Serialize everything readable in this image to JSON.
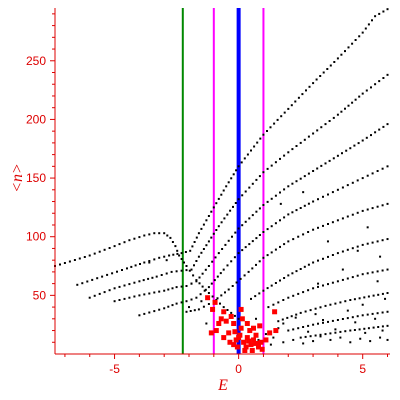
{
  "chart_data": {
    "type": "scatter",
    "title": "",
    "xlabel": "E",
    "ylabel": "<n>",
    "xlim": [
      -7.4,
      6.1
    ],
    "ylim": [
      0,
      295
    ],
    "xticks": [
      -5,
      0,
      5
    ],
    "yticks": [
      50,
      100,
      150,
      200,
      250
    ],
    "grid": false,
    "legend": "none",
    "colors": {
      "axes": "#dd0000",
      "main_points": "#000000",
      "highlight_points": "#ff0000",
      "left_line": "#008800",
      "band_lines": "#ff00ff",
      "center_line": "#0000ff"
    },
    "vertical_lines": [
      {
        "x": -2.25,
        "color": "#008800"
      },
      {
        "x": -1.0,
        "color": "#ff00ff"
      },
      {
        "x": 0.0,
        "color": "#0000ff"
      },
      {
        "x": 1.0,
        "color": "#ff00ff"
      }
    ],
    "series": [
      {
        "kind": "curve",
        "color": "#000000",
        "values": [
          [
            -7.4,
            75
          ],
          [
            -6.0,
            84
          ],
          [
            -5.0,
            92
          ],
          [
            -4.4,
            97
          ],
          [
            -3.8,
            101
          ],
          [
            -3.4,
            103
          ],
          [
            -3.0,
            103
          ],
          [
            -2.75,
            99
          ],
          [
            -2.55,
            92
          ],
          [
            -2.4,
            84
          ],
          [
            -2.1,
            75
          ],
          [
            -1.7,
            63
          ],
          [
            -1.2,
            52
          ],
          [
            -0.6,
            40
          ],
          [
            0.0,
            30
          ]
        ]
      },
      {
        "kind": "curve",
        "color": "#000000",
        "values": [
          [
            -6.5,
            59
          ],
          [
            -5.5,
            66
          ],
          [
            -4.5,
            73
          ],
          [
            -3.8,
            78
          ],
          [
            -3.2,
            82
          ],
          [
            -2.8,
            84
          ],
          [
            -2.3,
            86
          ],
          [
            -1.95,
            88
          ],
          [
            -1.6,
            103
          ],
          [
            -1.0,
            125
          ],
          [
            -0.5,
            143
          ],
          [
            0.0,
            160
          ],
          [
            1.0,
            187
          ],
          [
            2.0,
            209
          ],
          [
            3.0,
            231
          ],
          [
            4.0,
            252
          ],
          [
            5.0,
            274
          ],
          [
            5.5,
            288
          ],
          [
            6.0,
            294
          ]
        ]
      },
      {
        "kind": "curve",
        "color": "#000000",
        "values": [
          [
            -6.0,
            48
          ],
          [
            -5.0,
            56
          ],
          [
            -4.0,
            62
          ],
          [
            -3.3,
            66
          ],
          [
            -2.7,
            70
          ],
          [
            -2.3,
            71
          ],
          [
            -1.9,
            72
          ],
          [
            -1.6,
            83
          ],
          [
            -1.2,
            96
          ],
          [
            -0.8,
            109
          ],
          [
            0.0,
            132
          ],
          [
            1.0,
            155
          ],
          [
            2.0,
            172
          ],
          [
            3.0,
            188
          ],
          [
            4.0,
            204
          ],
          [
            5.0,
            222
          ],
          [
            6.0,
            238
          ]
        ]
      },
      {
        "kind": "curve",
        "color": "#000000",
        "values": [
          [
            -5.0,
            45
          ],
          [
            -4.0,
            50
          ],
          [
            -3.0,
            54
          ],
          [
            -2.5,
            57
          ],
          [
            -2.1,
            58
          ],
          [
            -1.7,
            62
          ],
          [
            -1.2,
            75
          ],
          [
            -0.8,
            86
          ],
          [
            0.0,
            107
          ],
          [
            1.0,
            127
          ],
          [
            2.0,
            143
          ],
          [
            3.0,
            156
          ],
          [
            4.0,
            169
          ],
          [
            5.0,
            182
          ],
          [
            6.0,
            196
          ]
        ]
      },
      {
        "kind": "curve",
        "color": "#000000",
        "values": [
          [
            -4.0,
            33
          ],
          [
            -3.0,
            39
          ],
          [
            -2.5,
            43
          ],
          [
            -2.1,
            45
          ],
          [
            -1.7,
            48
          ],
          [
            -1.2,
            57
          ],
          [
            -0.6,
            72
          ],
          [
            0.0,
            86
          ],
          [
            1.0,
            104
          ],
          [
            2.0,
            119
          ],
          [
            3.0,
            130
          ],
          [
            4.0,
            140
          ],
          [
            5.0,
            150
          ],
          [
            6.0,
            160
          ]
        ]
      },
      {
        "kind": "curve",
        "color": "#000000",
        "values": [
          [
            -2.1,
            36
          ],
          [
            -1.6,
            38
          ],
          [
            -1.0,
            45
          ],
          [
            -0.4,
            55
          ],
          [
            0.4,
            70
          ],
          [
            1.0,
            82
          ],
          [
            2.0,
            96
          ],
          [
            3.0,
            106
          ],
          [
            4.0,
            114
          ],
          [
            5.0,
            122
          ],
          [
            6.0,
            128
          ]
        ]
      },
      {
        "kind": "curve",
        "color": "#000000",
        "values": [
          [
            0.5,
            47
          ],
          [
            1.0,
            54
          ],
          [
            2.0,
            67
          ],
          [
            3.0,
            78
          ],
          [
            4.0,
            86
          ],
          [
            5.0,
            93
          ],
          [
            6.0,
            98
          ]
        ]
      },
      {
        "kind": "curve",
        "color": "#000000",
        "values": [
          [
            1.2,
            40
          ],
          [
            2.0,
            48
          ],
          [
            3.0,
            56
          ],
          [
            4.0,
            62
          ],
          [
            5.0,
            68
          ],
          [
            6.0,
            72
          ]
        ]
      },
      {
        "kind": "curve",
        "color": "#000000",
        "values": [
          [
            1.6,
            28
          ],
          [
            2.5,
            35
          ],
          [
            3.5,
            41
          ],
          [
            4.5,
            46
          ],
          [
            6.0,
            52
          ]
        ]
      },
      {
        "kind": "curve",
        "color": "#000000",
        "values": [
          [
            2.0,
            20
          ],
          [
            3.0,
            25
          ],
          [
            4.0,
            29
          ],
          [
            5.0,
            33
          ],
          [
            6.0,
            36
          ]
        ]
      },
      {
        "kind": "curve",
        "color": "#000000",
        "values": [
          [
            2.5,
            14
          ],
          [
            3.5,
            17
          ],
          [
            4.5,
            20
          ],
          [
            6.0,
            24
          ]
        ]
      },
      {
        "kind": "points",
        "color": "#000000",
        "values": [
          [
            1.4,
            14
          ],
          [
            1.8,
            10
          ],
          [
            2.2,
            12
          ],
          [
            2.6,
            9
          ],
          [
            3.0,
            11
          ],
          [
            3.3,
            15
          ],
          [
            3.7,
            12
          ],
          [
            4.1,
            14
          ],
          [
            4.5,
            10
          ],
          [
            4.9,
            13
          ],
          [
            5.3,
            11
          ],
          [
            5.7,
            14
          ],
          [
            6.0,
            12
          ],
          [
            1.6,
            22
          ],
          [
            2.8,
            19
          ],
          [
            3.9,
            21
          ],
          [
            5.1,
            18
          ],
          [
            5.8,
            20
          ],
          [
            2.3,
            31
          ],
          [
            3.4,
            29
          ],
          [
            4.7,
            27
          ],
          [
            5.5,
            30
          ],
          [
            1.1,
            17
          ],
          [
            1.3,
            8
          ],
          [
            0.8,
            12
          ],
          [
            -1.3,
            26
          ],
          [
            -1.5,
            45
          ],
          [
            -1.9,
            60
          ],
          [
            -2.9,
            80
          ],
          [
            -3.6,
            78
          ],
          [
            -2.0,
            40
          ],
          [
            1.8,
            26
          ],
          [
            3.1,
            34
          ],
          [
            5.0,
            42
          ],
          [
            5.9,
            47
          ],
          [
            4.4,
            37
          ],
          [
            5.6,
            62
          ],
          [
            4.8,
            88
          ],
          [
            3.6,
            96
          ],
          [
            2.6,
            138
          ],
          [
            1.7,
            128
          ],
          [
            5.2,
            108
          ],
          [
            5.7,
            83
          ],
          [
            4.2,
            72
          ],
          [
            3.2,
            60
          ],
          [
            0.7,
            30
          ]
        ]
      },
      {
        "kind": "points",
        "color": "#ff0000",
        "values": [
          [
            -0.1,
            12
          ],
          [
            0.05,
            16
          ],
          [
            0.2,
            10
          ],
          [
            0.35,
            14
          ],
          [
            0.5,
            8
          ],
          [
            0.6,
            12
          ],
          [
            0.8,
            6
          ],
          [
            0.9,
            10
          ],
          [
            0.1,
            22
          ],
          [
            -0.2,
            26
          ],
          [
            -0.4,
            18
          ],
          [
            -0.5,
            28
          ],
          [
            -0.7,
            30
          ],
          [
            -0.3,
            32
          ],
          [
            0.15,
            30
          ],
          [
            0.3,
            6
          ],
          [
            0.45,
            20
          ],
          [
            -0.05,
            6
          ],
          [
            0.7,
            16
          ],
          [
            0.95,
            4
          ],
          [
            -0.6,
            14
          ],
          [
            -0.8,
            26
          ],
          [
            -0.9,
            20
          ],
          [
            -1.1,
            18
          ],
          [
            -1.25,
            48
          ],
          [
            -1.05,
            38
          ],
          [
            -0.95,
            44
          ],
          [
            -0.6,
            36
          ],
          [
            0.35,
            26
          ],
          [
            1.1,
            12
          ],
          [
            1.25,
            18
          ],
          [
            0.25,
            3
          ],
          [
            0.55,
            3
          ],
          [
            0.1,
            38
          ],
          [
            -0.2,
            8
          ],
          [
            1.5,
            20
          ],
          [
            1.45,
            36
          ],
          [
            0.85,
            24
          ],
          [
            0.6,
            22
          ],
          [
            -0.35,
            10
          ],
          [
            0.0,
            14
          ],
          [
            0.4,
            11
          ],
          [
            0.7,
            9
          ],
          [
            -0.15,
            19
          ]
        ]
      }
    ]
  }
}
